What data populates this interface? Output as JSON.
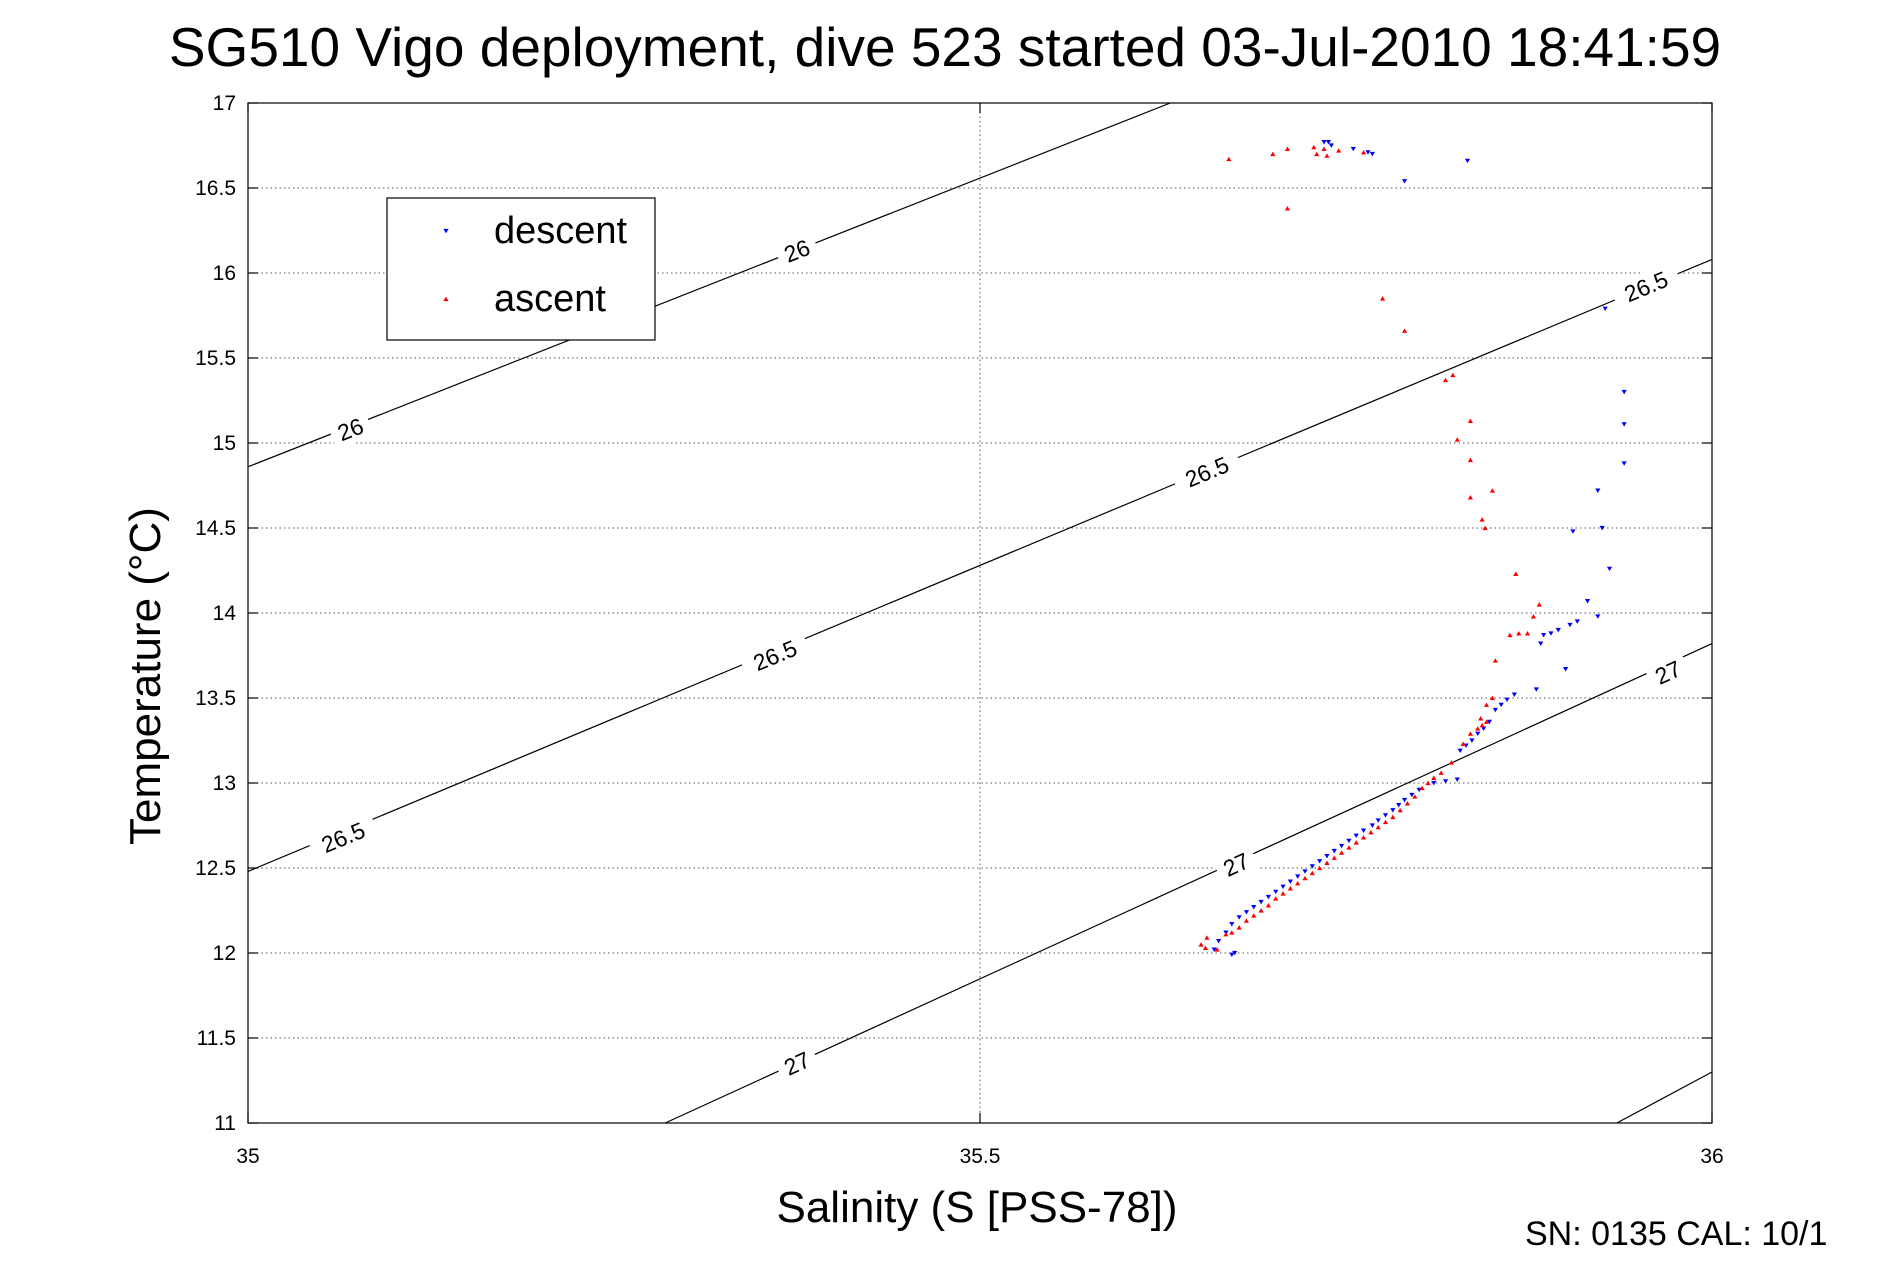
{
  "chart_data": {
    "type": "scatter",
    "title": "SG510 Vigo deployment, dive 523 started 03-Jul-2010 18:41:59",
    "xlabel": "Salinity (S [PSS-78])",
    "ylabel": "Temperature (°C)",
    "xlim": [
      35,
      36
    ],
    "ylim": [
      11,
      17
    ],
    "xticks": [
      35,
      35.5,
      36
    ],
    "xtick_labels": [
      "35",
      "35.5",
      "36"
    ],
    "yticks": [
      11,
      11.5,
      12,
      12.5,
      13,
      13.5,
      14,
      14.5,
      15,
      15.5,
      16,
      16.5,
      17
    ],
    "ytick_labels": [
      "11",
      "11.5",
      "12",
      "12.5",
      "13",
      "13.5",
      "14",
      "14.5",
      "15",
      "15.5",
      "16",
      "16.5",
      "17"
    ],
    "grid": true,
    "legend_position": "top-left",
    "footer": "SN: 0135  CAL: 10/1",
    "contours": [
      {
        "label": "26",
        "lines": [
          [
            [
              35,
              14.86
            ],
            [
              35.63,
              17
            ]
          ]
        ],
        "labels_at": [
          [
            35.07,
            15.08
          ],
          [
            35.375,
            16.13
          ]
        ]
      },
      {
        "label": "26.5",
        "lines": [
          [
            [
              35,
              12.48
            ],
            [
              36,
              16.08
            ]
          ]
        ],
        "labels_at": [
          [
            35.065,
            12.68
          ],
          [
            35.36,
            13.75
          ],
          [
            35.655,
            14.83
          ],
          [
            35.955,
            15.92
          ]
        ]
      },
      {
        "label": "27",
        "lines": [
          [
            [
              35.285,
              11
            ],
            [
              36,
              13.82
            ]
          ]
        ],
        "labels_at": [
          [
            35.375,
            11.35
          ],
          [
            35.675,
            12.52
          ],
          [
            35.97,
            13.65
          ]
        ]
      },
      {
        "label": "",
        "lines": [
          [
            [
              35.935,
              11
            ],
            [
              36,
              11.3
            ]
          ]
        ],
        "labels_at": []
      }
    ],
    "series": [
      {
        "name": "descent",
        "color": "#0000ff",
        "marker": "triangle-down",
        "points": [
          [
            35.735,
            16.77
          ],
          [
            35.738,
            16.77
          ],
          [
            35.74,
            16.75
          ],
          [
            35.755,
            16.73
          ],
          [
            35.765,
            16.71
          ],
          [
            35.768,
            16.7
          ],
          [
            35.833,
            16.66
          ],
          [
            35.79,
            16.54
          ],
          [
            35.927,
            15.79
          ],
          [
            35.94,
            15.3
          ],
          [
            35.94,
            15.11
          ],
          [
            35.94,
            14.88
          ],
          [
            35.922,
            14.72
          ],
          [
            35.905,
            14.48
          ],
          [
            35.925,
            14.5
          ],
          [
            35.93,
            14.26
          ],
          [
            35.915,
            14.07
          ],
          [
            35.922,
            13.98
          ],
          [
            35.908,
            13.95
          ],
          [
            35.903,
            13.93
          ],
          [
            35.895,
            13.9
          ],
          [
            35.89,
            13.88
          ],
          [
            35.885,
            13.87
          ],
          [
            35.883,
            13.82
          ],
          [
            35.9,
            13.67
          ],
          [
            35.88,
            13.55
          ],
          [
            35.865,
            13.52
          ],
          [
            35.86,
            13.49
          ],
          [
            35.856,
            13.46
          ],
          [
            35.852,
            13.43
          ],
          [
            35.848,
            13.36
          ],
          [
            35.844,
            13.32
          ],
          [
            35.84,
            13.29
          ],
          [
            35.836,
            13.25
          ],
          [
            35.832,
            13.22
          ],
          [
            35.828,
            13.19
          ],
          [
            35.826,
            13.02
          ],
          [
            35.818,
            13.01
          ],
          [
            35.81,
            13.0
          ],
          [
            35.8,
            12.96
          ],
          [
            35.795,
            12.93
          ],
          [
            35.79,
            12.9
          ],
          [
            35.786,
            12.87
          ],
          [
            35.782,
            12.84
          ],
          [
            35.777,
            12.81
          ],
          [
            35.772,
            12.78
          ],
          [
            35.768,
            12.75
          ],
          [
            35.762,
            12.72
          ],
          [
            35.757,
            12.69
          ],
          [
            35.752,
            12.66
          ],
          [
            35.747,
            12.63
          ],
          [
            35.742,
            12.6
          ],
          [
            35.737,
            12.57
          ],
          [
            35.732,
            12.54
          ],
          [
            35.727,
            12.51
          ],
          [
            35.722,
            12.48
          ],
          [
            35.717,
            12.45
          ],
          [
            35.712,
            12.42
          ],
          [
            35.707,
            12.39
          ],
          [
            35.702,
            12.36
          ],
          [
            35.697,
            12.33
          ],
          [
            35.692,
            12.3
          ],
          [
            35.687,
            12.27
          ],
          [
            35.682,
            12.24
          ],
          [
            35.677,
            12.21
          ],
          [
            35.672,
            12.17
          ],
          [
            35.668,
            12.12
          ],
          [
            35.663,
            12.07
          ],
          [
            35.66,
            12.02
          ],
          [
            35.672,
            11.99
          ],
          [
            35.674,
            12.0
          ]
        ]
      },
      {
        "name": "ascent",
        "color": "#ff0000",
        "marker": "triangle-up",
        "points": [
          [
            35.67,
            16.67
          ],
          [
            35.7,
            16.7
          ],
          [
            35.71,
            16.73
          ],
          [
            35.728,
            16.74
          ],
          [
            35.735,
            16.73
          ],
          [
            35.73,
            16.7
          ],
          [
            35.737,
            16.69
          ],
          [
            35.745,
            16.72
          ],
          [
            35.762,
            16.71
          ],
          [
            35.71,
            16.38
          ],
          [
            35.775,
            15.85
          ],
          [
            35.79,
            15.66
          ],
          [
            35.818,
            15.37
          ],
          [
            35.823,
            15.4
          ],
          [
            35.826,
            15.02
          ],
          [
            35.835,
            15.13
          ],
          [
            35.835,
            14.9
          ],
          [
            35.835,
            14.68
          ],
          [
            35.843,
            14.55
          ],
          [
            35.85,
            14.72
          ],
          [
            35.845,
            14.5
          ],
          [
            35.866,
            14.23
          ],
          [
            35.882,
            14.05
          ],
          [
            35.878,
            13.98
          ],
          [
            35.862,
            13.87
          ],
          [
            35.868,
            13.88
          ],
          [
            35.874,
            13.88
          ],
          [
            35.852,
            13.72
          ],
          [
            35.85,
            13.5
          ],
          [
            35.846,
            13.46
          ],
          [
            35.842,
            13.38
          ],
          [
            35.846,
            13.36
          ],
          [
            35.843,
            13.34
          ],
          [
            35.84,
            13.32
          ],
          [
            35.835,
            13.29
          ],
          [
            35.83,
            13.23
          ],
          [
            35.822,
            13.12
          ],
          [
            35.815,
            13.06
          ],
          [
            35.81,
            13.03
          ],
          [
            35.806,
            13.0
          ],
          [
            35.802,
            12.97
          ],
          [
            35.797,
            12.92
          ],
          [
            35.792,
            12.88
          ],
          [
            35.787,
            12.84
          ],
          [
            35.782,
            12.8
          ],
          [
            35.777,
            12.77
          ],
          [
            35.772,
            12.74
          ],
          [
            35.767,
            12.71
          ],
          [
            35.762,
            12.68
          ],
          [
            35.757,
            12.65
          ],
          [
            35.752,
            12.62
          ],
          [
            35.747,
            12.59
          ],
          [
            35.742,
            12.56
          ],
          [
            35.737,
            12.53
          ],
          [
            35.732,
            12.5
          ],
          [
            35.727,
            12.47
          ],
          [
            35.722,
            12.44
          ],
          [
            35.717,
            12.41
          ],
          [
            35.712,
            12.38
          ],
          [
            35.707,
            12.35
          ],
          [
            35.702,
            12.32
          ],
          [
            35.697,
            12.28
          ],
          [
            35.692,
            12.25
          ],
          [
            35.687,
            12.22
          ],
          [
            35.682,
            12.19
          ],
          [
            35.677,
            12.15
          ],
          [
            35.672,
            12.12
          ],
          [
            35.668,
            12.11
          ],
          [
            35.662,
            12.02
          ],
          [
            35.655,
            12.09
          ],
          [
            35.654,
            12.03
          ],
          [
            35.651,
            12.05
          ]
        ]
      }
    ]
  }
}
